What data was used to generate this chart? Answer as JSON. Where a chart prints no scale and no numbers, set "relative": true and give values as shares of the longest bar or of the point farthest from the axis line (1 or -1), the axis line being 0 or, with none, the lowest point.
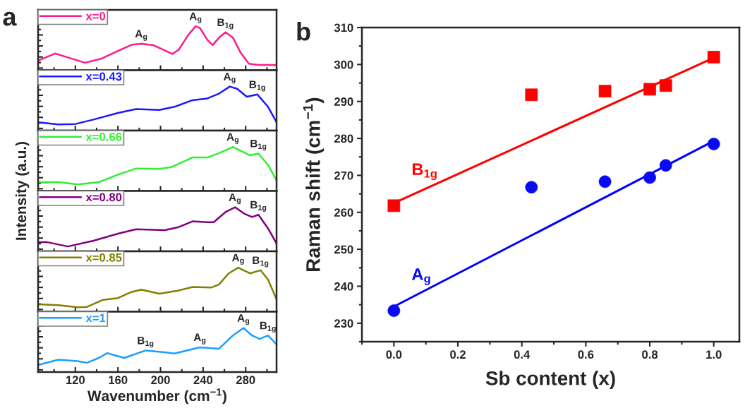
{
  "chart_data": [
    {
      "type": "line",
      "relative": true,
      "xlim": [
        85,
        309
      ],
      "xticks": [
        120,
        160,
        200,
        240,
        280
      ],
      "tick_labels": false,
      "legend": "top left",
      "annotations": [
        "a",
        {
          "text": "A$_{g}$",
          "x": 182,
          "y": 0.6
        },
        {
          "text": "A$_{g}$",
          "x": 233,
          "y": 1.0
        },
        {
          "text": "B$_{1g}$",
          "x": 261,
          "y": 0.86
        }
      ],
      "series": [
        {
          "name": "x=0",
          "color": "#ff1a8c",
          "x": [
            85,
            101,
            113,
            129,
            144,
            160,
            173,
            182,
            193,
            204,
            211,
            217,
            226,
            233,
            237,
            244,
            249,
            255,
            261,
            268,
            275,
            283,
            292,
            309
          ],
          "values": [
            0.22,
            0.38,
            0.29,
            0.17,
            0.26,
            0.44,
            0.58,
            0.6,
            0.57,
            0.45,
            0.37,
            0.46,
            0.8,
            1.0,
            0.96,
            0.69,
            0.57,
            0.74,
            0.86,
            0.74,
            0.41,
            0.15,
            0.12,
            0.12
          ]
        }
      ]
    },
    {
      "type": "line",
      "relative": true,
      "xlim": [
        85,
        309
      ],
      "xticks": [
        120,
        160,
        200,
        240,
        280
      ],
      "tick_labels": false,
      "legend": "top left",
      "annotations": [
        {
          "text": "A$_{g}$",
          "x": 265,
          "y": 1.0
        },
        {
          "text": "B$_{1g}$",
          "x": 291,
          "y": 0.82
        }
      ],
      "series": [
        {
          "name": "x=0.43",
          "color": "#1a1aff",
          "x": [
            85,
            104,
            120,
            137,
            160,
            177,
            199,
            213,
            230,
            244,
            255,
            265,
            272,
            281,
            291,
            301,
            309
          ],
          "values": [
            0.19,
            0.14,
            0.15,
            0.25,
            0.4,
            0.49,
            0.47,
            0.54,
            0.69,
            0.73,
            0.84,
            1.0,
            0.95,
            0.77,
            0.82,
            0.54,
            0.19
          ]
        }
      ]
    },
    {
      "type": "line",
      "relative": true,
      "xlim": [
        85,
        309
      ],
      "xticks": [
        120,
        160,
        200,
        240,
        280
      ],
      "tick_labels": false,
      "legend": "top left",
      "annotations": [
        {
          "text": "A$_{g}$",
          "x": 268,
          "y": 1.0
        },
        {
          "text": "B$_{1g}$",
          "x": 292,
          "y": 0.85
        }
      ],
      "series": [
        {
          "name": "x=0.66",
          "color": "#33ee33",
          "x": [
            85,
            104,
            122,
            142,
            160,
            177,
            199,
            210,
            230,
            244,
            255,
            268,
            277,
            284,
            292,
            301,
            309
          ],
          "values": [
            0.2,
            0.2,
            0.15,
            0.2,
            0.37,
            0.51,
            0.5,
            0.54,
            0.76,
            0.76,
            0.86,
            1.0,
            0.89,
            0.81,
            0.85,
            0.59,
            0.24
          ]
        }
      ]
    },
    {
      "type": "line",
      "relative": true,
      "xlim": [
        85,
        309
      ],
      "xticks": [
        120,
        160,
        200,
        240,
        280
      ],
      "tick_labels": false,
      "legend": "top left",
      "ylabel": "Intensity (a.u.)",
      "annotations": [
        {
          "text": "A$_{g}$",
          "x": 270,
          "y": 1.0
        },
        {
          "text": "B$_{1g}$",
          "x": 292,
          "y": 0.83
        }
      ],
      "series": [
        {
          "name": "x=0.80",
          "color": "#800080",
          "x": [
            85,
            93,
            113,
            137,
            160,
            177,
            204,
            217,
            230,
            244,
            250,
            261,
            270,
            279,
            286,
            292,
            301,
            309
          ],
          "values": [
            0.21,
            0.21,
            0.11,
            0.24,
            0.4,
            0.5,
            0.48,
            0.55,
            0.68,
            0.66,
            0.66,
            0.89,
            1.0,
            0.85,
            0.78,
            0.83,
            0.52,
            0.18
          ]
        }
      ]
    },
    {
      "type": "line",
      "relative": true,
      "xlim": [
        85,
        309
      ],
      "xticks": [
        120,
        160,
        200,
        240,
        280
      ],
      "tick_labels": false,
      "legend": "top left",
      "annotations": [
        {
          "text": "A$_{g}$",
          "x": 273,
          "y": 1.0
        },
        {
          "text": "B$_{1g}$",
          "x": 294,
          "y": 0.94
        }
      ],
      "series": [
        {
          "name": "x=0.85",
          "color": "#808000",
          "x": [
            85,
            104,
            122,
            131,
            146,
            160,
            173,
            182,
            199,
            217,
            230,
            248,
            255,
            264,
            273,
            284,
            294,
            301,
            309
          ],
          "values": [
            0.17,
            0.15,
            0.1,
            0.11,
            0.27,
            0.31,
            0.45,
            0.5,
            0.41,
            0.48,
            0.56,
            0.55,
            0.62,
            0.87,
            1.0,
            0.87,
            0.94,
            0.73,
            0.28
          ]
        }
      ]
    },
    {
      "type": "line",
      "relative": true,
      "xlim": [
        85,
        309
      ],
      "xticks": [
        120,
        160,
        200,
        240,
        280
      ],
      "tick_labels": "x",
      "legend": "top left",
      "xlabel": "Wavenumber (cm$^{−1}$)",
      "annotations": [
        {
          "text": "B$_{1g}$",
          "x": 186,
          "y": 0.49
        },
        {
          "text": "A$_{g}$",
          "x": 237,
          "y": 0.56
        },
        {
          "text": "A$_{g}$",
          "x": 278,
          "y": 1.0
        },
        {
          "text": "B$_{1g}$",
          "x": 301,
          "y": 0.83
        }
      ],
      "series": [
        {
          "name": "x=1",
          "color": "#1a9fff",
          "x": [
            85,
            104,
            122,
            131,
            142,
            150,
            157,
            166,
            186,
            204,
            213,
            237,
            255,
            268,
            278,
            286,
            293,
            301,
            309
          ],
          "values": [
            0.16,
            0.28,
            0.25,
            0.21,
            0.32,
            0.43,
            0.38,
            0.32,
            0.49,
            0.45,
            0.42,
            0.56,
            0.53,
            0.83,
            1.0,
            0.83,
            0.75,
            0.83,
            0.63
          ]
        }
      ]
    },
    {
      "type": "scatter",
      "xlabel": "Sb content (x)",
      "ylabel": "Raman shift (cm$^{−1}$)",
      "xlim": [
        -0.1,
        1.08
      ],
      "ylim": [
        225,
        310
      ],
      "xticks": [
        {
          "value": 0,
          "label": "0.0"
        },
        {
          "value": 0.2,
          "label": "0.2"
        },
        {
          "value": 0.4,
          "label": "0.4"
        },
        {
          "value": 0.6,
          "label": "0.6"
        },
        {
          "value": 0.8,
          "label": "0.8"
        },
        {
          "value": 1,
          "label": "1.0"
        }
      ],
      "yticks": [
        230,
        240,
        250,
        260,
        270,
        280,
        290,
        300,
        310
      ],
      "annotations": [
        "b"
      ],
      "series": [
        {
          "type": "scatter",
          "name": "B$_{1g}$",
          "marker": "square",
          "color": "#ff0000",
          "x": [
            0,
            0.43,
            0.66,
            0.8,
            0.85,
            1.0
          ],
          "values": [
            261.8,
            291.8,
            292.8,
            293.3,
            294.3,
            302.0
          ]
        },
        {
          "type": "scatter",
          "name": "A$_{g}$",
          "marker": "circle",
          "color": "#0a0af0",
          "x": [
            0,
            0.43,
            0.66,
            0.8,
            0.85,
            1.0
          ],
          "values": [
            233.4,
            266.8,
            268.3,
            269.4,
            272.7,
            278.5
          ]
        },
        {
          "type": "line",
          "color": "#ff0000",
          "x": [
            0,
            1
          ],
          "values": [
            262.5,
            301.8
          ]
        },
        {
          "type": "line",
          "color": "#0000ff",
          "x": [
            0,
            1
          ],
          "values": [
            234.5,
            279.3
          ]
        }
      ]
    }
  ]
}
